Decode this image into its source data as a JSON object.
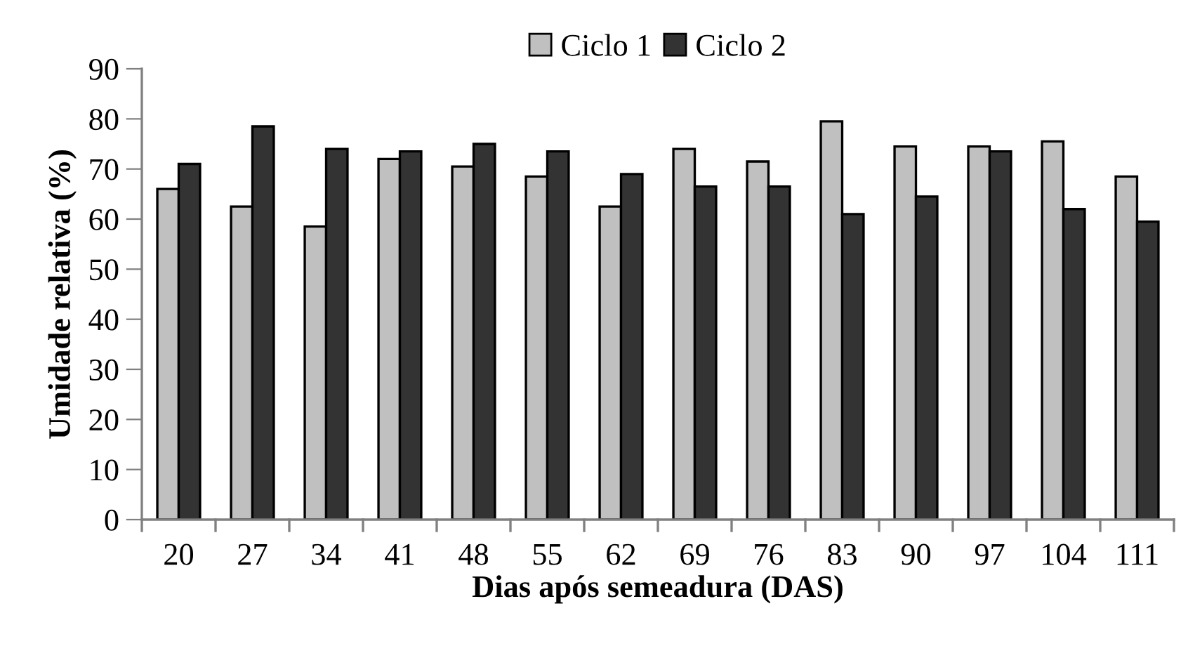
{
  "chart_data": {
    "type": "bar",
    "xlabel": "Dias após semeadura (DAS)",
    "ylabel": "Umidade relativa (%)",
    "categories": [
      "20",
      "27",
      "34",
      "41",
      "48",
      "55",
      "62",
      "69",
      "76",
      "83",
      "90",
      "97",
      "104",
      "111"
    ],
    "series": [
      {
        "name": "Ciclo 1",
        "color": "#c0c0c0",
        "values": [
          66,
          62.5,
          58.5,
          72,
          70.5,
          68.5,
          62.5,
          74,
          71.5,
          79.5,
          74.5,
          74.5,
          75.5,
          68.5
        ]
      },
      {
        "name": "Ciclo 2",
        "color": "#333333",
        "values": [
          71,
          78.5,
          74,
          73.5,
          75,
          73.5,
          69,
          66.5,
          66.5,
          61,
          64.5,
          73.5,
          62,
          59.5
        ]
      }
    ],
    "ylim": [
      0,
      90
    ],
    "yticks": [
      0,
      10,
      20,
      30,
      40,
      50,
      60,
      70,
      80,
      90
    ],
    "grid": false,
    "legend": "top"
  }
}
